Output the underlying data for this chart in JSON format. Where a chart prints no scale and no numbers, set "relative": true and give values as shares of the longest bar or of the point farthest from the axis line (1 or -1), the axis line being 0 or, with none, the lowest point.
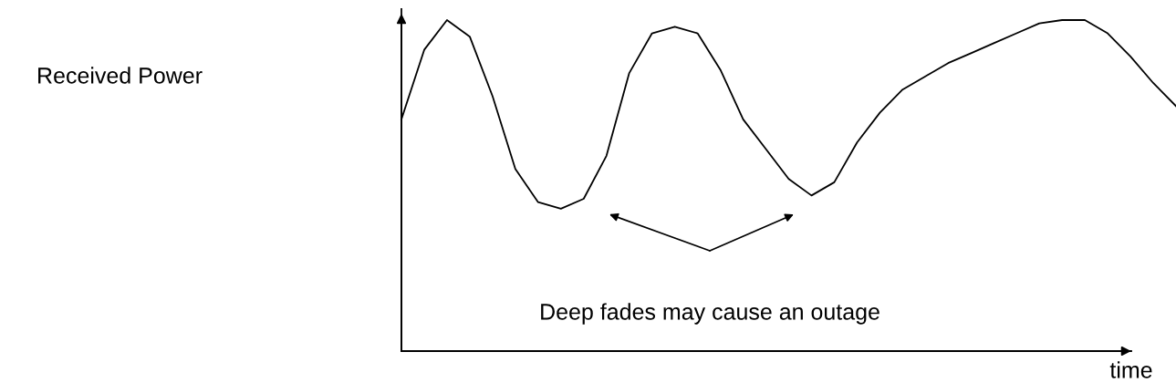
{
  "chart_data": {
    "type": "line",
    "relative": true,
    "xlabel": "time",
    "annotations": [
      "Received Power",
      "Deep fades may cause an outage"
    ],
    "categories": [
      null,
      null,
      null,
      null,
      null,
      null,
      null,
      null,
      null,
      null,
      null,
      null,
      null,
      null,
      null,
      null,
      null,
      null,
      null,
      null,
      null,
      null,
      null,
      null,
      null,
      null,
      null,
      null,
      null,
      null,
      null,
      null,
      null,
      null,
      null
    ],
    "series": [
      {
        "color": "#000000",
        "values": [
          0.7,
          0.91,
          1,
          0.95,
          0.77,
          0.55,
          0.45,
          0.43,
          0.46,
          0.59,
          0.84,
          0.96,
          0.98,
          0.96,
          0.85,
          0.7,
          0.61,
          0.52,
          0.47,
          0.51,
          0.63,
          0.72,
          0.79,
          0.83,
          0.87,
          0.9,
          0.93,
          0.96,
          0.99,
          1,
          1,
          0.96,
          0.89,
          0.81,
          0.74
        ]
      }
    ],
    "grid": false,
    "legend": false,
    "marker": "none",
    "line_style": "solid"
  }
}
